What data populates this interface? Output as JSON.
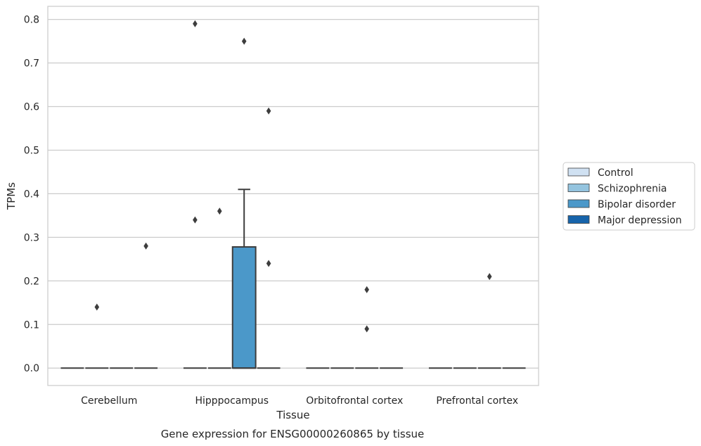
{
  "chart_data": {
    "type": "box",
    "xlabel": "Tissue",
    "ylabel": "TPMs",
    "caption": "Gene expression for ENSG00000260865 by tissue",
    "ylim": [
      -0.04,
      0.83
    ],
    "yticks": [
      "0.0",
      "0.1",
      "0.2",
      "0.3",
      "0.4",
      "0.5",
      "0.6",
      "0.7",
      "0.8"
    ],
    "grid": "horizontal",
    "legend_position": "right",
    "categories": [
      "Cerebellum",
      "Hipppocampus",
      "Orbitofrontal cortex",
      "Prefrontal cortex"
    ],
    "series": [
      {
        "name": "Control",
        "color": "#d0e1f2"
      },
      {
        "name": "Schizophrenia",
        "color": "#94c4df"
      },
      {
        "name": "Bipolar disorder",
        "color": "#4b98c9"
      },
      {
        "name": "Major depression",
        "color": "#1764ab"
      }
    ],
    "boxes": [
      {
        "category": "Cerebellum",
        "series": "Control",
        "q1": 0,
        "median": 0,
        "q3": 0,
        "whisker_low": 0,
        "whisker_high": 0,
        "outliers": []
      },
      {
        "category": "Cerebellum",
        "series": "Schizophrenia",
        "q1": 0,
        "median": 0,
        "q3": 0,
        "whisker_low": 0,
        "whisker_high": 0,
        "outliers": [
          0.14
        ]
      },
      {
        "category": "Cerebellum",
        "series": "Bipolar disorder",
        "q1": 0,
        "median": 0,
        "q3": 0,
        "whisker_low": 0,
        "whisker_high": 0,
        "outliers": []
      },
      {
        "category": "Cerebellum",
        "series": "Major depression",
        "q1": 0,
        "median": 0,
        "q3": 0,
        "whisker_low": 0,
        "whisker_high": 0,
        "outliers": [
          0.28
        ]
      },
      {
        "category": "Hipppocampus",
        "series": "Control",
        "q1": 0,
        "median": 0,
        "q3": 0,
        "whisker_low": 0,
        "whisker_high": 0,
        "outliers": [
          0.34,
          0.79
        ]
      },
      {
        "category": "Hipppocampus",
        "series": "Schizophrenia",
        "q1": 0,
        "median": 0,
        "q3": 0,
        "whisker_low": 0,
        "whisker_high": 0,
        "outliers": [
          0.36
        ]
      },
      {
        "category": "Hipppocampus",
        "series": "Bipolar disorder",
        "q1": 0,
        "median": 0,
        "q3": 0.278,
        "whisker_low": 0,
        "whisker_high": 0.41,
        "outliers": [
          0.75
        ]
      },
      {
        "category": "Hipppocampus",
        "series": "Major depression",
        "q1": 0,
        "median": 0,
        "q3": 0,
        "whisker_low": 0,
        "whisker_high": 0,
        "outliers": [
          0.24,
          0.59
        ]
      },
      {
        "category": "Orbitofrontal cortex",
        "series": "Control",
        "q1": 0,
        "median": 0,
        "q3": 0,
        "whisker_low": 0,
        "whisker_high": 0,
        "outliers": []
      },
      {
        "category": "Orbitofrontal cortex",
        "series": "Schizophrenia",
        "q1": 0,
        "median": 0,
        "q3": 0,
        "whisker_low": 0,
        "whisker_high": 0,
        "outliers": []
      },
      {
        "category": "Orbitofrontal cortex",
        "series": "Bipolar disorder",
        "q1": 0,
        "median": 0,
        "q3": 0,
        "whisker_low": 0,
        "whisker_high": 0,
        "outliers": [
          0.09,
          0.18
        ]
      },
      {
        "category": "Orbitofrontal cortex",
        "series": "Major depression",
        "q1": 0,
        "median": 0,
        "q3": 0,
        "whisker_low": 0,
        "whisker_high": 0,
        "outliers": []
      },
      {
        "category": "Prefrontal cortex",
        "series": "Control",
        "q1": 0,
        "median": 0,
        "q3": 0,
        "whisker_low": 0,
        "whisker_high": 0,
        "outliers": []
      },
      {
        "category": "Prefrontal cortex",
        "series": "Schizophrenia",
        "q1": 0,
        "median": 0,
        "q3": 0,
        "whisker_low": 0,
        "whisker_high": 0,
        "outliers": []
      },
      {
        "category": "Prefrontal cortex",
        "series": "Bipolar disorder",
        "q1": 0,
        "median": 0,
        "q3": 0,
        "whisker_low": 0,
        "whisker_high": 0,
        "outliers": [
          0.21
        ]
      },
      {
        "category": "Prefrontal cortex",
        "series": "Major depression",
        "q1": 0,
        "median": 0,
        "q3": 0,
        "whisker_low": 0,
        "whisker_high": 0,
        "outliers": []
      }
    ]
  }
}
